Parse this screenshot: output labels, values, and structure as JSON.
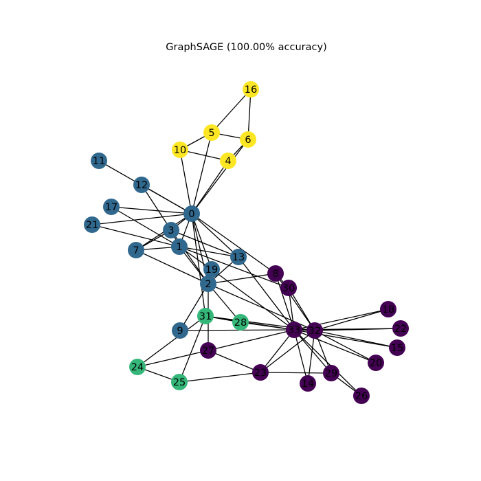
{
  "title": "GraphSAGE (100.00% accuracy)",
  "class_colors": [
    "#440154",
    "#31688e",
    "#35b779",
    "#fde725"
  ],
  "nodes": [
    {
      "id": "0",
      "class": 1
    },
    {
      "id": "1",
      "class": 1
    },
    {
      "id": "2",
      "class": 1
    },
    {
      "id": "3",
      "class": 1
    },
    {
      "id": "4",
      "class": 3
    },
    {
      "id": "5",
      "class": 3
    },
    {
      "id": "6",
      "class": 3
    },
    {
      "id": "7",
      "class": 1
    },
    {
      "id": "8",
      "class": 0
    },
    {
      "id": "9",
      "class": 1
    },
    {
      "id": "10",
      "class": 3
    },
    {
      "id": "11",
      "class": 1
    },
    {
      "id": "12",
      "class": 1
    },
    {
      "id": "13",
      "class": 1
    },
    {
      "id": "14",
      "class": 0
    },
    {
      "id": "15",
      "class": 0
    },
    {
      "id": "16",
      "class": 3
    },
    {
      "id": "17",
      "class": 1
    },
    {
      "id": "18",
      "class": 0
    },
    {
      "id": "19",
      "class": 1
    },
    {
      "id": "20",
      "class": 0
    },
    {
      "id": "21",
      "class": 1
    },
    {
      "id": "22",
      "class": 0
    },
    {
      "id": "23",
      "class": 0
    },
    {
      "id": "24",
      "class": 2
    },
    {
      "id": "25",
      "class": 2
    },
    {
      "id": "26",
      "class": 0
    },
    {
      "id": "27",
      "class": 0
    },
    {
      "id": "28",
      "class": 2
    },
    {
      "id": "29",
      "class": 0
    },
    {
      "id": "30",
      "class": 0
    },
    {
      "id": "31",
      "class": 2
    },
    {
      "id": "32",
      "class": 0
    },
    {
      "id": "33",
      "class": 0
    }
  ],
  "edges": [
    [
      "0",
      "1"
    ],
    [
      "0",
      "2"
    ],
    [
      "0",
      "3"
    ],
    [
      "0",
      "4"
    ],
    [
      "0",
      "5"
    ],
    [
      "0",
      "6"
    ],
    [
      "0",
      "7"
    ],
    [
      "0",
      "8"
    ],
    [
      "0",
      "10"
    ],
    [
      "0",
      "11"
    ],
    [
      "0",
      "12"
    ],
    [
      "0",
      "13"
    ],
    [
      "0",
      "17"
    ],
    [
      "0",
      "19"
    ],
    [
      "0",
      "21"
    ],
    [
      "0",
      "31"
    ],
    [
      "1",
      "2"
    ],
    [
      "1",
      "3"
    ],
    [
      "1",
      "7"
    ],
    [
      "1",
      "13"
    ],
    [
      "1",
      "17"
    ],
    [
      "1",
      "19"
    ],
    [
      "1",
      "21"
    ],
    [
      "1",
      "30"
    ],
    [
      "2",
      "3"
    ],
    [
      "2",
      "7"
    ],
    [
      "2",
      "8"
    ],
    [
      "2",
      "9"
    ],
    [
      "2",
      "13"
    ],
    [
      "2",
      "27"
    ],
    [
      "2",
      "28"
    ],
    [
      "2",
      "32"
    ],
    [
      "3",
      "7"
    ],
    [
      "3",
      "12"
    ],
    [
      "3",
      "13"
    ],
    [
      "4",
      "6"
    ],
    [
      "4",
      "10"
    ],
    [
      "5",
      "6"
    ],
    [
      "5",
      "10"
    ],
    [
      "5",
      "16"
    ],
    [
      "6",
      "16"
    ],
    [
      "8",
      "30"
    ],
    [
      "8",
      "32"
    ],
    [
      "8",
      "33"
    ],
    [
      "9",
      "33"
    ],
    [
      "13",
      "33"
    ],
    [
      "14",
      "32"
    ],
    [
      "14",
      "33"
    ],
    [
      "15",
      "32"
    ],
    [
      "15",
      "33"
    ],
    [
      "18",
      "32"
    ],
    [
      "18",
      "33"
    ],
    [
      "19",
      "33"
    ],
    [
      "20",
      "32"
    ],
    [
      "20",
      "33"
    ],
    [
      "22",
      "32"
    ],
    [
      "22",
      "33"
    ],
    [
      "23",
      "25"
    ],
    [
      "23",
      "27"
    ],
    [
      "23",
      "29"
    ],
    [
      "23",
      "32"
    ],
    [
      "23",
      "33"
    ],
    [
      "24",
      "25"
    ],
    [
      "24",
      "27"
    ],
    [
      "24",
      "31"
    ],
    [
      "25",
      "31"
    ],
    [
      "26",
      "29"
    ],
    [
      "26",
      "33"
    ],
    [
      "27",
      "33"
    ],
    [
      "28",
      "31"
    ],
    [
      "28",
      "33"
    ],
    [
      "29",
      "32"
    ],
    [
      "29",
      "33"
    ],
    [
      "30",
      "32"
    ],
    [
      "30",
      "33"
    ],
    [
      "31",
      "32"
    ],
    [
      "31",
      "33"
    ],
    [
      "32",
      "33"
    ]
  ]
}
